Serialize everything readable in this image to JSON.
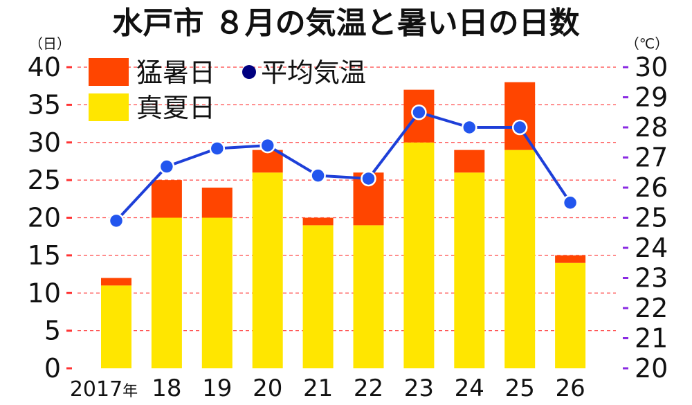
{
  "chart_data": {
    "type": "bar",
    "title": "水戸市 ８月の気温と暑い日の日数",
    "left_unit": "（日）",
    "right_unit": "（℃）",
    "categories": [
      "2017年",
      "18",
      "19",
      "20",
      "21",
      "22",
      "23",
      "24",
      "25",
      "26"
    ],
    "x_tick_labels": [
      {
        "main": "2017",
        "suffix": "年"
      },
      {
        "main": "18",
        "suffix": ""
      },
      {
        "main": "19",
        "suffix": ""
      },
      {
        "main": "20",
        "suffix": ""
      },
      {
        "main": "21",
        "suffix": ""
      },
      {
        "main": "22",
        "suffix": ""
      },
      {
        "main": "23",
        "suffix": ""
      },
      {
        "main": "24",
        "suffix": ""
      },
      {
        "main": "25",
        "suffix": ""
      },
      {
        "main": "26",
        "suffix": ""
      }
    ],
    "series": [
      {
        "name": "真夏日",
        "kind": "bar",
        "axis": "left",
        "color": "#ffe600",
        "values": [
          11,
          20,
          20,
          26,
          19,
          19,
          30,
          26,
          29,
          14
        ]
      },
      {
        "name": "猛暑日",
        "kind": "bar",
        "axis": "left",
        "color": "#ff4500",
        "values": [
          1,
          5,
          4,
          3,
          1,
          7,
          7,
          3,
          9,
          1
        ]
      },
      {
        "name": "平均気温",
        "kind": "line",
        "axis": "right",
        "color": "#1e3fd8",
        "marker_color": "#2255ee",
        "values": [
          24.9,
          26.7,
          27.3,
          27.4,
          26.4,
          26.3,
          28.5,
          28.0,
          28.0,
          25.5
        ]
      }
    ],
    "stacked": true,
    "left_axis": {
      "ylim": [
        0,
        40
      ],
      "ticks": [
        0,
        5,
        10,
        15,
        20,
        25,
        30,
        35,
        40
      ],
      "tick_color": "#ff3333"
    },
    "right_axis": {
      "ylim": [
        20,
        30
      ],
      "ticks": [
        20,
        21,
        22,
        23,
        24,
        25,
        26,
        27,
        28,
        29,
        30
      ],
      "tick_color": "#8a2be2"
    },
    "grid": true,
    "grid_color": "#ff4444",
    "legend": [
      {
        "label": "猛暑日",
        "symbol": "square",
        "color": "#ff4500"
      },
      {
        "label": "平均気温",
        "symbol": "circle",
        "color": "#000080"
      },
      {
        "label": "真夏日",
        "symbol": "square",
        "color": "#ffe600"
      }
    ],
    "legend_position": "top-left"
  }
}
